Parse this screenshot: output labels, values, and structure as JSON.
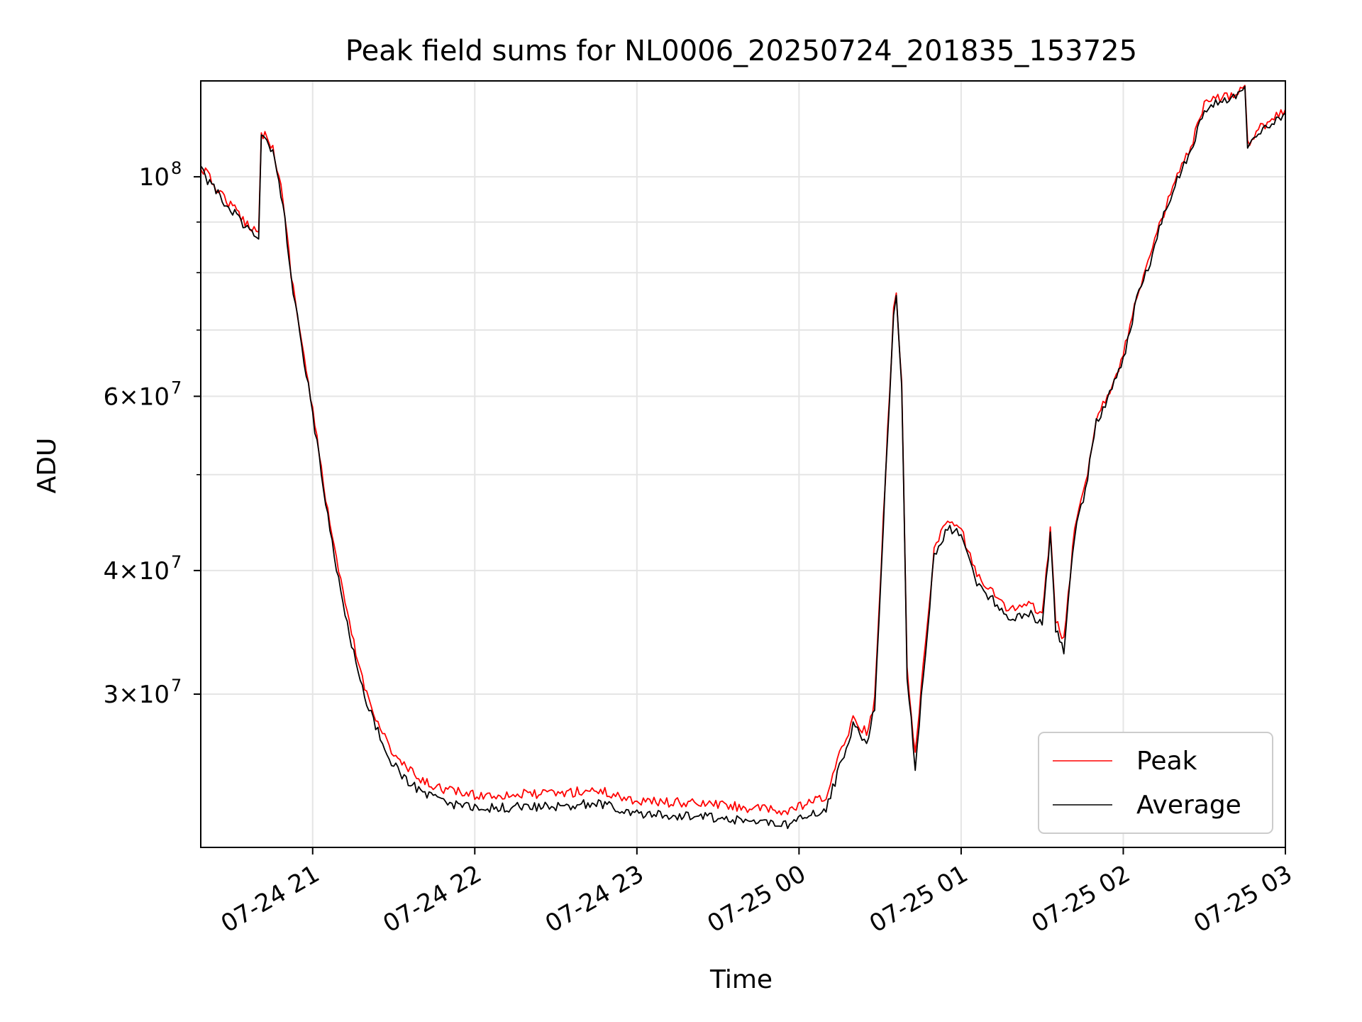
{
  "chart_data": {
    "type": "line",
    "title": "Peak field sums for NL0006_20250724_201835_153725",
    "xlabel": "Time",
    "ylabel": "ADU",
    "x_range": [
      "2025-07-24 20:18:35",
      "2025-07-25 03:00:00"
    ],
    "y_scale": "log",
    "ylim": [
      21000000,
      125000000
    ],
    "grid": true,
    "legend_position": "lower right",
    "x_tick_labels": [
      "07-24 21",
      "07-24 22",
      "07-24 23",
      "07-25 00",
      "07-25 01",
      "07-25 02",
      "07-25 03"
    ],
    "x_ticks": [
      "2025-07-24 21:00",
      "2025-07-24 22:00",
      "2025-07-24 23:00",
      "2025-07-25 00:00",
      "2025-07-25 01:00",
      "2025-07-25 02:00",
      "2025-07-25 03:00"
    ],
    "y_ticks": [
      {
        "value": 100000000,
        "base": "10",
        "exp": "8"
      },
      {
        "value": 60000000,
        "base": "6×10",
        "exp": "7"
      },
      {
        "value": 40000000,
        "base": "4×10",
        "exp": "7"
      },
      {
        "value": 30000000,
        "base": "3×10",
        "exp": "7"
      }
    ],
    "y_minor_ticks": [
      90000000,
      80000000,
      70000000,
      50000000
    ],
    "x": [
      "2025-07-24 20:18",
      "2025-07-24 20:25",
      "2025-07-24 20:35",
      "2025-07-24 20:40",
      "2025-07-24 20:41",
      "2025-07-24 20:43",
      "2025-07-24 20:46",
      "2025-07-24 20:49",
      "2025-07-24 20:52",
      "2025-07-24 20:56",
      "2025-07-24 21:00",
      "2025-07-24 21:04",
      "2025-07-24 21:08",
      "2025-07-24 21:12",
      "2025-07-24 21:16",
      "2025-07-24 21:20",
      "2025-07-24 21:25",
      "2025-07-24 21:30",
      "2025-07-24 21:40",
      "2025-07-24 21:50",
      "2025-07-24 22:00",
      "2025-07-24 22:30",
      "2025-07-24 22:45",
      "2025-07-24 23:00",
      "2025-07-24 23:30",
      "2025-07-24 23:55",
      "2025-07-25 00:10",
      "2025-07-25 00:15",
      "2025-07-25 00:20",
      "2025-07-25 00:25",
      "2025-07-25 00:28",
      "2025-07-25 00:32",
      "2025-07-25 00:35",
      "2025-07-25 00:36",
      "2025-07-25 00:38",
      "2025-07-25 00:40",
      "2025-07-25 00:43",
      "2025-07-25 00:46",
      "2025-07-25 00:50",
      "2025-07-25 00:55",
      "2025-07-25 01:00",
      "2025-07-25 01:05",
      "2025-07-25 01:10",
      "2025-07-25 01:15",
      "2025-07-25 01:20",
      "2025-07-25 01:25",
      "2025-07-25 01:30",
      "2025-07-25 01:33",
      "2025-07-25 01:35",
      "2025-07-25 01:38",
      "2025-07-25 01:42",
      "2025-07-25 01:46",
      "2025-07-25 01:50",
      "2025-07-25 01:55",
      "2025-07-25 02:00",
      "2025-07-25 02:05",
      "2025-07-25 02:10",
      "2025-07-25 02:15",
      "2025-07-25 02:20",
      "2025-07-25 02:25",
      "2025-07-25 02:30",
      "2025-07-25 02:35",
      "2025-07-25 02:40",
      "2025-07-25 02:45",
      "2025-07-25 02:46",
      "2025-07-25 02:50",
      "2025-07-25 02:55",
      "2025-07-25 03:00"
    ],
    "series": [
      {
        "name": "Peak",
        "color": "#ff0000",
        "values": [
          103000000,
          97000000,
          90000000,
          88000000,
          110000000,
          111000000,
          105000000,
          95000000,
          80000000,
          68000000,
          58000000,
          49000000,
          42000000,
          37000000,
          33000000,
          30000000,
          27800000,
          26000000,
          24500000,
          24000000,
          23700000,
          23800000,
          24000000,
          23400000,
          23200000,
          22800000,
          23600000,
          26000000,
          28400000,
          27400000,
          29500000,
          50000000,
          73000000,
          76000000,
          62000000,
          32000000,
          26000000,
          32000000,
          42000000,
          45000000,
          44000000,
          40000000,
          38500000,
          37000000,
          36500000,
          37000000,
          36000000,
          44000000,
          35500000,
          34000000,
          44000000,
          49000000,
          57000000,
          61000000,
          66000000,
          76000000,
          83000000,
          92000000,
          100000000,
          107000000,
          118000000,
          120000000,
          121000000,
          124000000,
          108000000,
          112000000,
          114000000,
          117000000
        ]
      },
      {
        "name": "Average",
        "color": "#000000",
        "values": [
          102000000,
          96000000,
          89000000,
          87000000,
          109000000,
          110000000,
          104000000,
          94000000,
          79000000,
          67500000,
          57500000,
          48500000,
          41500000,
          36200000,
          32200000,
          29300000,
          27200000,
          25400000,
          23800000,
          23300000,
          23000000,
          23100000,
          23300000,
          22700000,
          22500000,
          22100000,
          22900000,
          25300000,
          27800000,
          26800000,
          29000000,
          49500000,
          72500000,
          75500000,
          61500000,
          31300000,
          25400000,
          31300000,
          41400000,
          44300000,
          43300000,
          39300000,
          37800000,
          36300000,
          35800000,
          36300000,
          35300000,
          43300000,
          34800000,
          33300000,
          43300000,
          48300000,
          56300000,
          60300000,
          65300000,
          75300000,
          82300000,
          91300000,
          99300000,
          106300000,
          117000000,
          119000000,
          120000000,
          123000000,
          107000000,
          111000000,
          113000000,
          116000000
        ]
      }
    ]
  }
}
